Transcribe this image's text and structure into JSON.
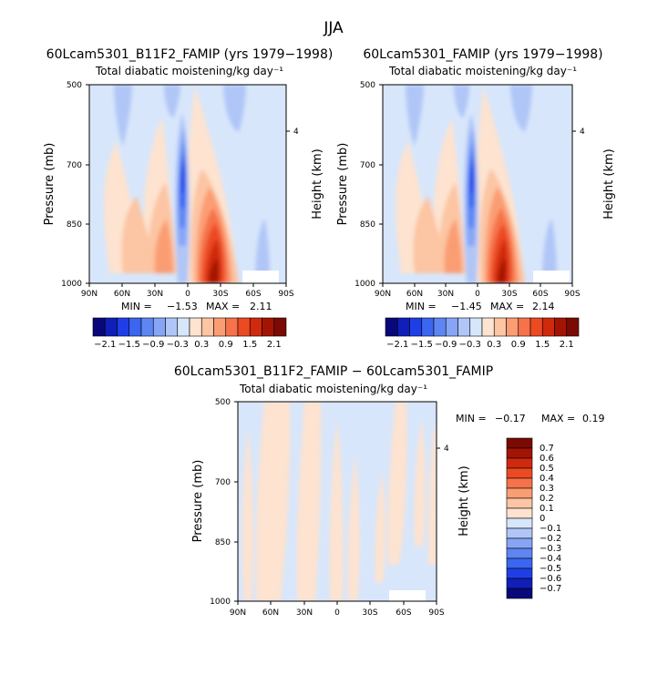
{
  "figure": {
    "title": "JJA"
  },
  "chart_data": [
    {
      "type": "heatmap",
      "title": "60Lcam5301_B11F2_FAMIP (yrs 1979−1998)",
      "subtitle": "Total diabatic moistening/kg day⁻¹",
      "xlabel": "",
      "ylabel": "Pressure (mb)",
      "ylabel_right": "Height (km)",
      "x_ticks": [
        "90N",
        "60N",
        "30N",
        "0",
        "30S",
        "60S",
        "90S"
      ],
      "y_ticks": [
        "500",
        "700",
        "850",
        "1000"
      ],
      "right_ticks": [
        "4"
      ],
      "ylim": [
        1000,
        500
      ],
      "xlim": [
        "90N",
        "90S"
      ],
      "min_label": "MIN =",
      "min_value": "−1.53",
      "max_label": "MAX =",
      "max_value": "2.11",
      "colorbar": {
        "orientation": "horizontal",
        "labels": [
          "−2.1",
          "−1.5",
          "−0.9",
          "−0.3",
          "0.3",
          "0.9",
          "1.5",
          "2.1"
        ],
        "levels": [
          -2.1,
          -1.8,
          -1.5,
          -1.2,
          -0.9,
          -0.6,
          -0.3,
          0,
          0.3,
          0.6,
          0.9,
          1.2,
          1.5,
          1.8,
          2.1
        ]
      }
    },
    {
      "type": "heatmap",
      "title": "60Lcam5301_FAMIP (yrs 1979−1998)",
      "subtitle": "Total diabatic moistening/kg day⁻¹",
      "xlabel": "",
      "ylabel": "Pressure (mb)",
      "ylabel_right": "Height (km)",
      "x_ticks": [
        "90N",
        "60N",
        "30N",
        "0",
        "30S",
        "60S",
        "90S"
      ],
      "y_ticks": [
        "500",
        "700",
        "850",
        "1000"
      ],
      "right_ticks": [
        "4"
      ],
      "ylim": [
        1000,
        500
      ],
      "xlim": [
        "90N",
        "90S"
      ],
      "min_label": "MIN =",
      "min_value": "−1.45",
      "max_label": "MAX =",
      "max_value": "2.14",
      "colorbar": {
        "orientation": "horizontal",
        "labels": [
          "−2.1",
          "−1.5",
          "−0.9",
          "−0.3",
          "0.3",
          "0.9",
          "1.5",
          "2.1"
        ],
        "levels": [
          -2.1,
          -1.8,
          -1.5,
          -1.2,
          -0.9,
          -0.6,
          -0.3,
          0,
          0.3,
          0.6,
          0.9,
          1.2,
          1.5,
          1.8,
          2.1
        ]
      }
    },
    {
      "type": "heatmap",
      "title": "60Lcam5301_B11F2_FAMIP − 60Lcam5301_FAMIP",
      "subtitle": "Total diabatic moistening/kg day⁻¹",
      "xlabel": "",
      "ylabel": "Pressure (mb)",
      "ylabel_right": "Height (km)",
      "x_ticks": [
        "90N",
        "60N",
        "30N",
        "0",
        "30S",
        "60S",
        "90S"
      ],
      "y_ticks": [
        "500",
        "700",
        "850",
        "1000"
      ],
      "right_ticks": [
        "4"
      ],
      "ylim": [
        1000,
        500
      ],
      "xlim": [
        "90N",
        "90S"
      ],
      "min_label": "MIN =",
      "min_value": "−0.17",
      "max_label": "MAX =",
      "max_value": "0.19",
      "colorbar": {
        "orientation": "vertical",
        "labels": [
          "0.7",
          "0.6",
          "0.5",
          "0.4",
          "0.3",
          "0.2",
          "0.1",
          "0",
          "−0.1",
          "−0.2",
          "−0.3",
          "−0.4",
          "−0.5",
          "−0.6",
          "−0.7"
        ],
        "levels": [
          0.7,
          0.6,
          0.5,
          0.4,
          0.3,
          0.2,
          0.1,
          0,
          -0.1,
          -0.2,
          -0.3,
          -0.4,
          -0.5,
          -0.6,
          -0.7
        ]
      }
    }
  ],
  "colors": {
    "ramp": [
      "#08087a",
      "#0f1fb8",
      "#1f3fe6",
      "#3a66f0",
      "#5d86f3",
      "#86a6f5",
      "#b0c6f7",
      "#d7e6fb",
      "#fde3d0",
      "#fcc5a3",
      "#fb9d73",
      "#f6724a",
      "#eb4a23",
      "#cf2a0d",
      "#a41405",
      "#7a0a03"
    ],
    "pale_blue": "#d7e6fb",
    "pale_red": "#fde3d0"
  }
}
